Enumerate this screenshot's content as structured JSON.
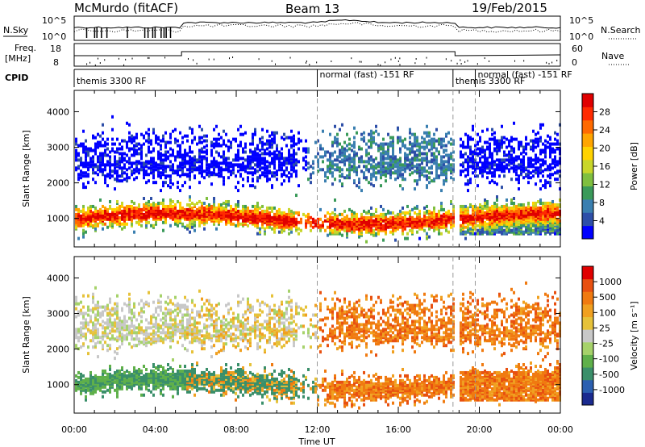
{
  "header": {
    "station": "McMurdo (fitACF)",
    "beam": "Beam 13",
    "date": "19/Feb/2015"
  },
  "strip": {
    "nsky_label": "N.Sky",
    "nsky_ticks": [
      "10^5",
      "10^0"
    ],
    "nsearch_label": "N.Search",
    "nsearch_ticks": [
      "10^5",
      "10^0"
    ],
    "freq_label_1": "Freq.",
    "freq_label_2": "[MHz]",
    "freq_ticks": [
      "18",
      "8"
    ],
    "nave_label": "Nave",
    "nave_ticks": [
      "60",
      "0"
    ],
    "cpid_label": "CPID",
    "cpid_segments": [
      {
        "label": "themis 3300 RF",
        "start_hour": 0,
        "end_hour": 12.0
      },
      {
        "label": "normal (fast) -151 RF",
        "start_hour": 12.0,
        "end_hour": 18.7
      },
      {
        "label": "themis 3300 RF",
        "start_hour": 18.7,
        "end_hour": 19.8
      },
      {
        "label": "normal (fast) -151 RF",
        "start_hour": 19.8,
        "end_hour": 24
      }
    ]
  },
  "chart_data": [
    {
      "type": "heatmap",
      "panel": "power",
      "ylabel": "Slant Range [km]",
      "ylim": [
        200,
        4600
      ],
      "yticks": [
        "1000",
        "2000",
        "3000",
        "4000"
      ],
      "xlim": [
        0,
        24
      ],
      "colorbar_label": "Power [dB]",
      "colorbar_ticks": [
        "4",
        "8",
        "12",
        "16",
        "20",
        "24",
        "28"
      ],
      "colorbar_colors": [
        "#0000ff",
        "#2e4fa8",
        "#3a7fb0",
        "#3a9a5a",
        "#7fbf3f",
        "#c8d62a",
        "#ffd200",
        "#ffa500",
        "#ff6a00",
        "#ff2a00",
        "#e00000"
      ]
    },
    {
      "type": "heatmap",
      "panel": "velocity",
      "ylabel": "Slant Range [km]",
      "ylim": [
        200,
        4600
      ],
      "yticks": [
        "1000",
        "2000",
        "3000",
        "4000"
      ],
      "xlim": [
        0,
        24
      ],
      "xticks": [
        "00:00",
        "04:00",
        "08:00",
        "12:00",
        "16:00",
        "20:00",
        "00:00"
      ],
      "xlabel": "Time UT",
      "colorbar_label": "Velocity [m s⁻¹]",
      "colorbar_ticks": [
        "1000",
        "500",
        "100",
        "25",
        "-25",
        "-100",
        "-500",
        "-1000"
      ],
      "colorbar_colors": [
        "#1a2a8f",
        "#2b5fb0",
        "#3a8f6a",
        "#5fb04a",
        "#a6d26a",
        "#c8c8c8",
        "#e6c23a",
        "#f0a020",
        "#f07a10",
        "#e85010",
        "#e00000"
      ]
    }
  ]
}
